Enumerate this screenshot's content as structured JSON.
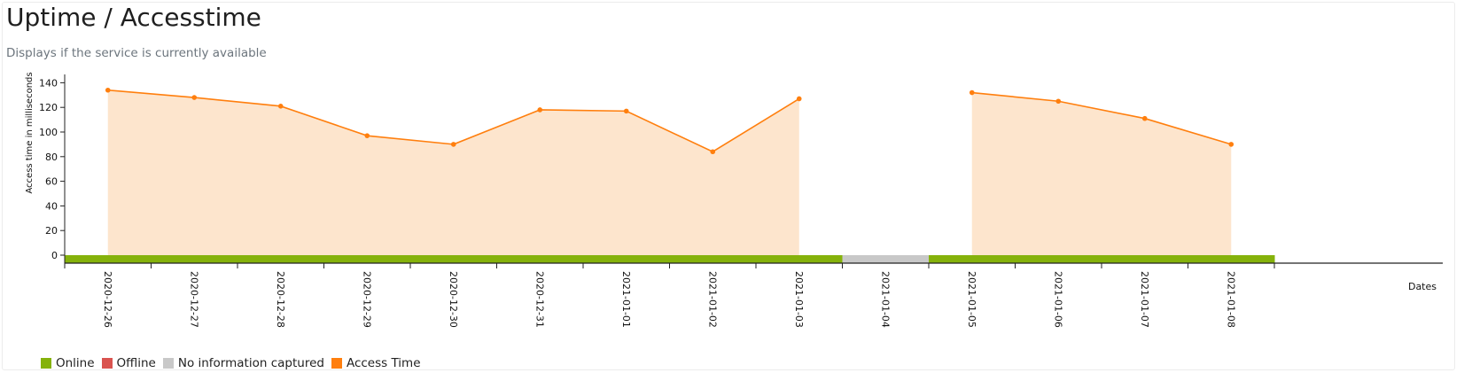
{
  "page": {
    "title": "Uptime / Accesstime",
    "subtitle": "Displays if the service is currently available"
  },
  "colors": {
    "online": "#85b20b",
    "offline": "#d9534f",
    "no_info": "#c8c8c8",
    "access_line": "#ff7f0e",
    "access_fill": "#fde5cd",
    "axis": "#222222"
  },
  "legend": [
    {
      "label": "Online",
      "color": "#85b20b"
    },
    {
      "label": "Offline",
      "color": "#d9534f"
    },
    {
      "label": "No information captured",
      "color": "#c8c8c8"
    },
    {
      "label": "Access Time",
      "color": "#ff7f0e"
    }
  ],
  "chart_data": {
    "type": "area",
    "title": "",
    "xlabel": "Dates",
    "ylabel": "Access time in milliseconds",
    "ylim": [
      0,
      150
    ],
    "yticks": [
      0,
      20,
      40,
      60,
      80,
      100,
      120,
      140
    ],
    "categories": [
      "2020-12-26",
      "2020-12-27",
      "2020-12-28",
      "2020-12-29",
      "2020-12-30",
      "2020-12-31",
      "2021-01-01",
      "2021-01-02",
      "2021-01-03",
      "2021-01-04",
      "2021-01-05",
      "2021-01-06",
      "2021-01-07",
      "2021-01-08"
    ],
    "series": [
      {
        "name": "Access Time",
        "values": [
          134,
          128,
          121,
          97,
          90,
          118,
          117,
          84,
          127,
          null,
          132,
          125,
          111,
          90
        ]
      }
    ],
    "status": [
      "online",
      "online",
      "online",
      "online",
      "online",
      "online",
      "online",
      "online",
      "online",
      "no_info",
      "online",
      "online",
      "online",
      "online"
    ],
    "grid": false
  }
}
